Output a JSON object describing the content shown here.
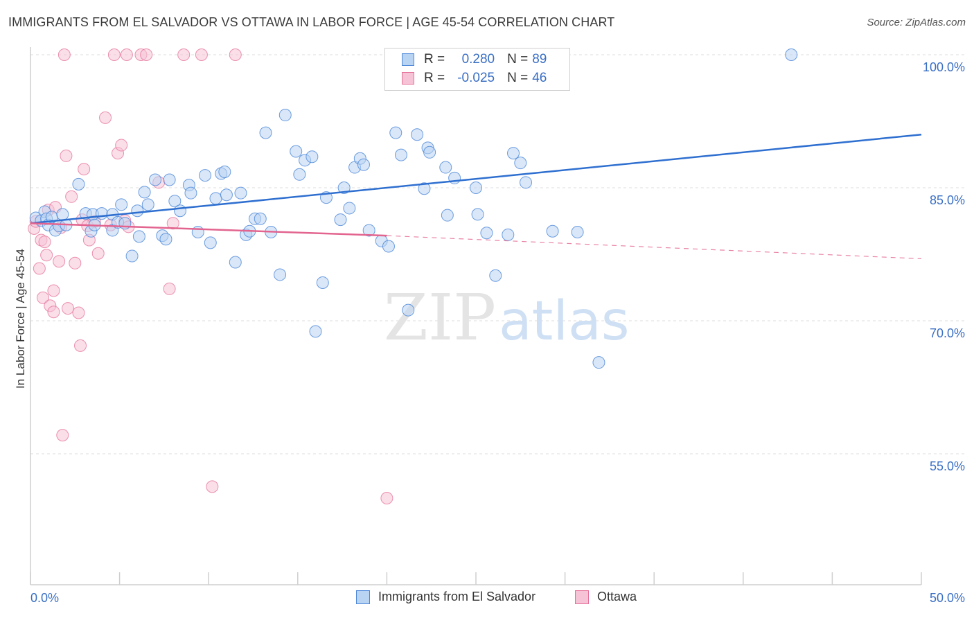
{
  "title": "IMMIGRANTS FROM EL SALVADOR VS OTTAWA IN LABOR FORCE | AGE 45-54 CORRELATION CHART",
  "source": "Source: ZipAtlas.com",
  "watermark": {
    "zip": "ZIP",
    "atlas": "atlas"
  },
  "colors": {
    "blue": "#4a86d8",
    "blue_fill": "#b9d3f3",
    "pink": "#e56f98",
    "pink_fill": "#f6c3d6",
    "tick_label": "#3a6fc4",
    "grid": "#dedede"
  },
  "legend": {
    "rows": [
      {
        "r_label": "R =",
        "r_value": "0.280",
        "n_label": "N =",
        "n_value": "89"
      },
      {
        "r_label": "R =",
        "r_value": "-0.025",
        "n_label": "N =",
        "n_value": "46"
      }
    ]
  },
  "bottom_legend": [
    {
      "label": "Immigrants from El Salvador"
    },
    {
      "label": "Ottawa"
    }
  ],
  "chart_data": {
    "type": "scatter",
    "xlabel": "",
    "ylabel": "In Labor Force | Age 45-54",
    "xlim": [
      0,
      50
    ],
    "ylim": [
      40,
      102
    ],
    "x_tick_labels": [
      {
        "value": 0,
        "label": "0.0%"
      },
      {
        "value": 50,
        "label": "50.0%"
      }
    ],
    "y_tick_labels": [
      {
        "value": 100,
        "label": "100.0%"
      },
      {
        "value": 85,
        "label": "85.0%"
      },
      {
        "value": 70,
        "label": "70.0%"
      },
      {
        "value": 55,
        "label": "55.0%"
      }
    ],
    "grid": "horizontal dashed",
    "legend_position": "top-center",
    "series": [
      {
        "name": "Immigrants from El Salvador",
        "color": "#4a86d8",
        "trend": {
          "x": [
            0,
            50
          ],
          "y": [
            81.0,
            91.0
          ],
          "style": "solid"
        },
        "points": [
          [
            0.3,
            81.6
          ],
          [
            0.6,
            81.3
          ],
          [
            0.8,
            82.3
          ],
          [
            0.9,
            81.5
          ],
          [
            1.0,
            80.8
          ],
          [
            1.2,
            81.7
          ],
          [
            1.4,
            80.2
          ],
          [
            1.6,
            80.7
          ],
          [
            1.8,
            82.0
          ],
          [
            2.0,
            80.8
          ],
          [
            2.7,
            85.4
          ],
          [
            3.1,
            82.1
          ],
          [
            3.4,
            80.1
          ],
          [
            3.5,
            82.0
          ],
          [
            3.6,
            80.8
          ],
          [
            4.0,
            82.1
          ],
          [
            4.6,
            80.2
          ],
          [
            4.6,
            82.0
          ],
          [
            4.9,
            81.1
          ],
          [
            5.1,
            83.1
          ],
          [
            5.3,
            81.0
          ],
          [
            5.7,
            77.3
          ],
          [
            6.0,
            82.4
          ],
          [
            6.1,
            79.5
          ],
          [
            6.4,
            84.5
          ],
          [
            6.6,
            83.1
          ],
          [
            7.0,
            85.9
          ],
          [
            7.4,
            79.6
          ],
          [
            7.6,
            79.2
          ],
          [
            7.8,
            85.9
          ],
          [
            8.1,
            83.5
          ],
          [
            8.4,
            82.4
          ],
          [
            8.9,
            85.3
          ],
          [
            9.0,
            84.4
          ],
          [
            9.4,
            80.0
          ],
          [
            9.8,
            86.4
          ],
          [
            10.1,
            78.8
          ],
          [
            10.4,
            83.8
          ],
          [
            10.7,
            86.6
          ],
          [
            10.9,
            86.8
          ],
          [
            11.0,
            84.2
          ],
          [
            11.5,
            76.6
          ],
          [
            11.8,
            84.4
          ],
          [
            12.1,
            79.7
          ],
          [
            12.3,
            80.1
          ],
          [
            12.6,
            81.5
          ],
          [
            12.9,
            81.5
          ],
          [
            13.2,
            91.2
          ],
          [
            13.5,
            80.0
          ],
          [
            14.0,
            75.2
          ],
          [
            14.3,
            93.2
          ],
          [
            14.9,
            89.1
          ],
          [
            15.1,
            86.5
          ],
          [
            15.4,
            88.1
          ],
          [
            15.8,
            88.5
          ],
          [
            16.0,
            68.8
          ],
          [
            16.4,
            74.3
          ],
          [
            16.6,
            83.9
          ],
          [
            17.4,
            81.4
          ],
          [
            17.6,
            85.0
          ],
          [
            17.9,
            82.7
          ],
          [
            18.2,
            87.3
          ],
          [
            18.5,
            88.3
          ],
          [
            18.7,
            87.6
          ],
          [
            19.0,
            80.2
          ],
          [
            19.7,
            79.0
          ],
          [
            20.1,
            78.4
          ],
          [
            20.5,
            91.2
          ],
          [
            20.8,
            88.7
          ],
          [
            21.2,
            71.2
          ],
          [
            21.7,
            91.0
          ],
          [
            22.1,
            84.9
          ],
          [
            22.3,
            89.5
          ],
          [
            22.4,
            89.0
          ],
          [
            23.3,
            87.3
          ],
          [
            23.4,
            81.9
          ],
          [
            23.8,
            86.1
          ],
          [
            25.0,
            85.0
          ],
          [
            25.1,
            82.0
          ],
          [
            25.6,
            79.9
          ],
          [
            26.1,
            75.1
          ],
          [
            26.8,
            79.7
          ],
          [
            27.1,
            88.9
          ],
          [
            27.5,
            87.8
          ],
          [
            27.8,
            85.6
          ],
          [
            29.3,
            80.1
          ],
          [
            30.7,
            80.0
          ],
          [
            31.9,
            65.3
          ],
          [
            42.7,
            100.0
          ]
        ]
      },
      {
        "name": "Ottawa",
        "color": "#e56f98",
        "trend": {
          "x": [
            0,
            20
          ],
          "y": [
            81.0,
            79.6
          ],
          "style": "solid",
          "dashed_extension": {
            "x": [
              20,
              50
            ],
            "y": [
              79.6,
              77.0
            ]
          }
        },
        "points": [
          [
            0.2,
            80.4
          ],
          [
            0.3,
            81.2
          ],
          [
            0.5,
            75.9
          ],
          [
            0.6,
            79.1
          ],
          [
            0.7,
            72.6
          ],
          [
            0.8,
            78.9
          ],
          [
            0.9,
            77.4
          ],
          [
            1.0,
            82.5
          ],
          [
            1.1,
            71.7
          ],
          [
            1.3,
            73.4
          ],
          [
            1.3,
            71.0
          ],
          [
            1.4,
            82.8
          ],
          [
            1.6,
            76.7
          ],
          [
            1.7,
            80.5
          ],
          [
            1.8,
            57.1
          ],
          [
            1.9,
            100.0
          ],
          [
            2.0,
            88.6
          ],
          [
            2.1,
            71.4
          ],
          [
            2.3,
            84.0
          ],
          [
            2.5,
            76.5
          ],
          [
            2.7,
            70.9
          ],
          [
            2.8,
            67.2
          ],
          [
            2.9,
            81.4
          ],
          [
            3.0,
            87.1
          ],
          [
            3.2,
            80.7
          ],
          [
            3.3,
            79.1
          ],
          [
            3.6,
            81.2
          ],
          [
            3.8,
            77.6
          ],
          [
            4.2,
            92.9
          ],
          [
            4.5,
            80.8
          ],
          [
            4.7,
            100.0
          ],
          [
            4.9,
            88.9
          ],
          [
            5.1,
            89.8
          ],
          [
            5.3,
            81.3
          ],
          [
            5.4,
            100.0
          ],
          [
            5.5,
            80.6
          ],
          [
            6.2,
            100.0
          ],
          [
            6.5,
            100.0
          ],
          [
            7.2,
            85.6
          ],
          [
            7.8,
            73.6
          ],
          [
            8.0,
            81.0
          ],
          [
            8.6,
            100.0
          ],
          [
            9.6,
            100.0
          ],
          [
            10.2,
            51.3
          ],
          [
            11.5,
            100.0
          ],
          [
            20.0,
            50.0
          ]
        ]
      }
    ]
  }
}
